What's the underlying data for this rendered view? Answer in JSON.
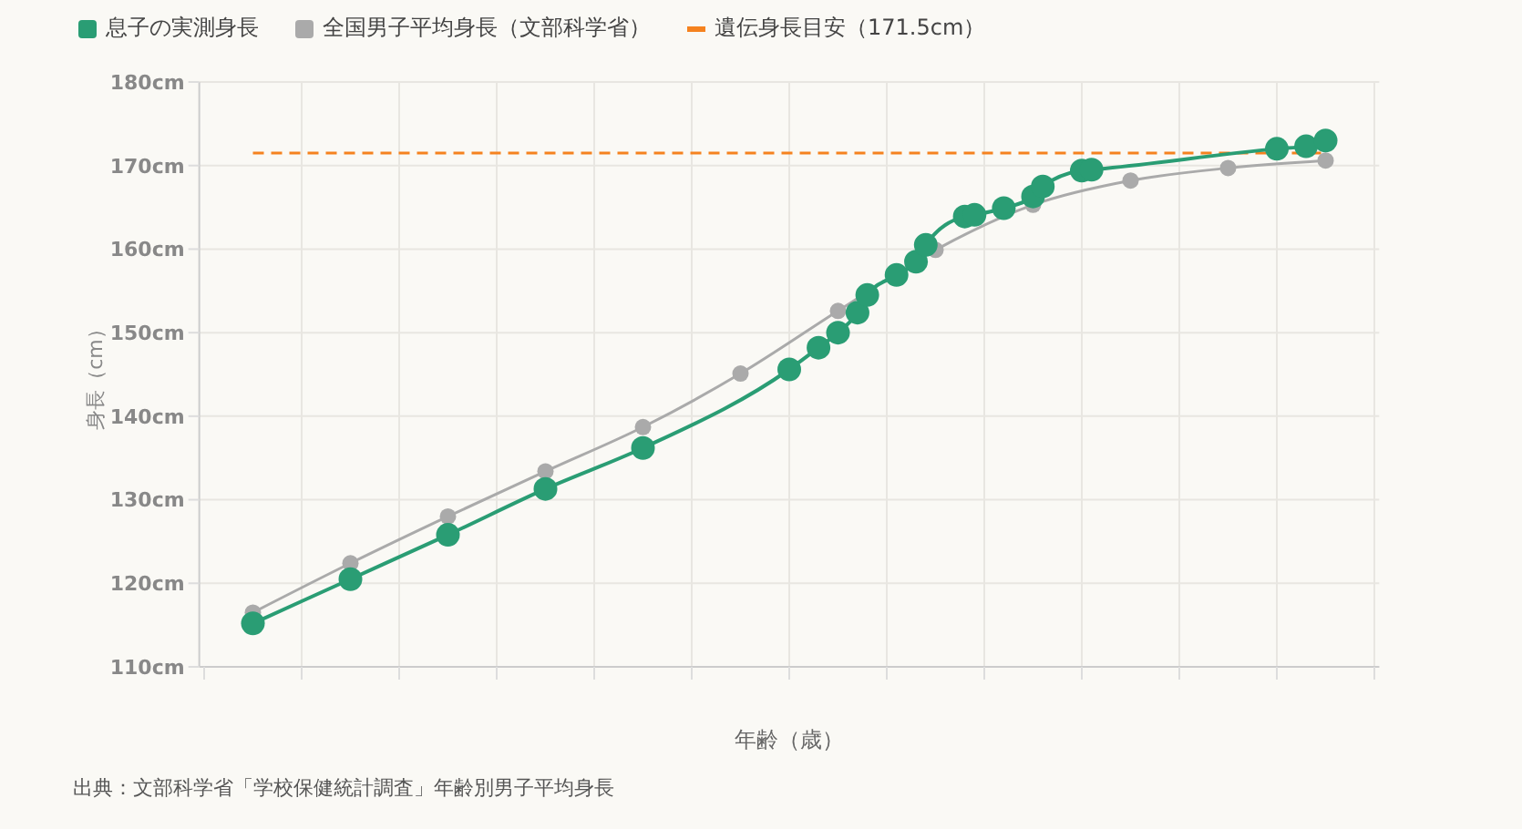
{
  "chart_data": {
    "type": "line",
    "xlabel": "年齢（歳）",
    "ylabel": "身長（cm）",
    "annotations": [
      "出典：文部科学省「学校保健統計調査」年齢別男子平均身長"
    ],
    "categories": [
      null,
      null,
      null,
      null,
      null,
      null,
      null,
      null,
      null,
      null,
      null,
      null,
      null,
      null,
      null,
      null,
      null,
      null,
      null,
      null,
      null,
      null,
      null,
      null,
      null,
      null,
      null,
      null,
      null,
      null,
      null,
      null,
      null,
      null,
      null,
      null,
      null,
      null,
      null,
      null,
      null,
      null,
      null,
      null,
      null,
      null,
      null,
      null,
      null,
      null,
      null,
      null,
      null,
      null,
      null,
      null,
      null,
      null,
      null,
      null,
      null,
      null,
      null,
      null,
      null,
      null,
      null,
      null,
      null,
      null,
      null,
      null,
      null,
      null,
      null,
      null,
      null,
      null,
      null,
      null,
      null,
      null,
      null,
      null,
      null,
      null,
      null,
      null,
      null,
      null,
      null,
      null,
      null,
      null,
      null,
      null,
      null,
      null,
      null,
      null,
      null,
      null,
      null,
      null,
      null,
      null,
      null,
      null,
      null,
      null,
      null,
      null,
      null,
      null,
      null,
      null,
      null,
      null,
      null,
      null,
      null
    ],
    "ylim": [
      110,
      180
    ],
    "yticks": [
      {
        "value": 110,
        "label": "110cm"
      },
      {
        "value": 120,
        "label": "120cm"
      },
      {
        "value": 130,
        "label": "130cm"
      },
      {
        "value": 140,
        "label": "140cm"
      },
      {
        "value": 150,
        "label": "150cm"
      },
      {
        "value": 160,
        "label": "160cm"
      },
      {
        "value": 170,
        "label": "170cm"
      },
      {
        "value": 180,
        "label": "180cm"
      }
    ],
    "tick_labels": "y",
    "grid": true,
    "legend": "top left",
    "marker": "circle",
    "line_style": "solid",
    "series": [
      {
        "name": "息子の実測身長",
        "color": "#2a9d74",
        "values": [
          null,
          null,
          null,
          null,
          null,
          115.2,
          null,
          null,
          null,
          null,
          null,
          null,
          null,
          null,
          null,
          120.5,
          null,
          null,
          null,
          null,
          null,
          null,
          null,
          null,
          null,
          125.8,
          null,
          null,
          null,
          null,
          null,
          null,
          null,
          null,
          null,
          131.3,
          null,
          null,
          null,
          null,
          null,
          null,
          null,
          null,
          null,
          136.2,
          null,
          null,
          null,
          null,
          null,
          null,
          null,
          null,
          null,
          null,
          null,
          null,
          null,
          null,
          145.6,
          null,
          null,
          148.2,
          null,
          150.0,
          null,
          152.4,
          154.5,
          null,
          null,
          156.9,
          null,
          158.5,
          160.5,
          null,
          null,
          null,
          163.9,
          164.1,
          null,
          null,
          164.9,
          null,
          null,
          166.3,
          167.5,
          null,
          null,
          null,
          169.4,
          169.5,
          null,
          null,
          null,
          null,
          null,
          null,
          null,
          null,
          null,
          null,
          null,
          null,
          null,
          null,
          null,
          null,
          null,
          null,
          172.0,
          null,
          null,
          172.3,
          null,
          173.0,
          null,
          null,
          null,
          null,
          null
        ]
      },
      {
        "name": "全国男子平均身長（文部科学省）",
        "color": "#aaaaaa",
        "values": [
          null,
          null,
          null,
          null,
          null,
          116.5,
          null,
          null,
          null,
          null,
          null,
          null,
          null,
          null,
          null,
          122.4,
          null,
          null,
          null,
          null,
          null,
          null,
          null,
          null,
          null,
          128.0,
          null,
          null,
          null,
          null,
          null,
          null,
          null,
          null,
          null,
          133.4,
          null,
          null,
          null,
          null,
          null,
          null,
          null,
          null,
          null,
          138.7,
          null,
          null,
          null,
          null,
          null,
          null,
          null,
          null,
          null,
          145.1,
          null,
          null,
          null,
          null,
          null,
          null,
          null,
          null,
          null,
          152.6,
          null,
          null,
          null,
          null,
          null,
          null,
          null,
          null,
          null,
          159.9,
          null,
          null,
          null,
          null,
          null,
          null,
          null,
          null,
          null,
          165.3,
          null,
          null,
          null,
          null,
          null,
          null,
          null,
          null,
          null,
          168.2,
          null,
          null,
          null,
          null,
          null,
          null,
          null,
          null,
          null,
          169.7,
          null,
          null,
          null,
          null,
          null,
          null,
          null,
          null,
          null,
          170.6,
          null,
          null,
          null,
          null,
          null
        ]
      },
      {
        "name": "遺伝身長目安（171.5cm）",
        "color": "#f5821f",
        "type": "line",
        "marker": "none",
        "line_style": "dashed",
        "values": [
          null,
          null,
          null,
          null,
          null,
          171.5,
          null,
          null,
          null,
          null,
          null,
          null,
          null,
          null,
          null,
          null,
          null,
          null,
          null,
          null,
          null,
          null,
          null,
          null,
          null,
          null,
          null,
          null,
          null,
          null,
          null,
          null,
          null,
          null,
          null,
          null,
          null,
          null,
          null,
          null,
          null,
          null,
          null,
          null,
          null,
          null,
          null,
          null,
          null,
          null,
          null,
          null,
          null,
          null,
          null,
          null,
          null,
          null,
          null,
          null,
          null,
          null,
          null,
          null,
          null,
          null,
          null,
          null,
          null,
          null,
          null,
          null,
          null,
          null,
          null,
          null,
          null,
          null,
          null,
          null,
          null,
          null,
          null,
          null,
          null,
          null,
          null,
          null,
          null,
          null,
          null,
          null,
          null,
          null,
          null,
          null,
          null,
          null,
          null,
          null,
          null,
          null,
          null,
          null,
          null,
          null,
          null,
          null,
          null,
          null,
          null,
          null,
          null,
          null,
          null,
          171.5,
          null,
          null,
          null,
          null,
          null
        ]
      }
    ]
  }
}
